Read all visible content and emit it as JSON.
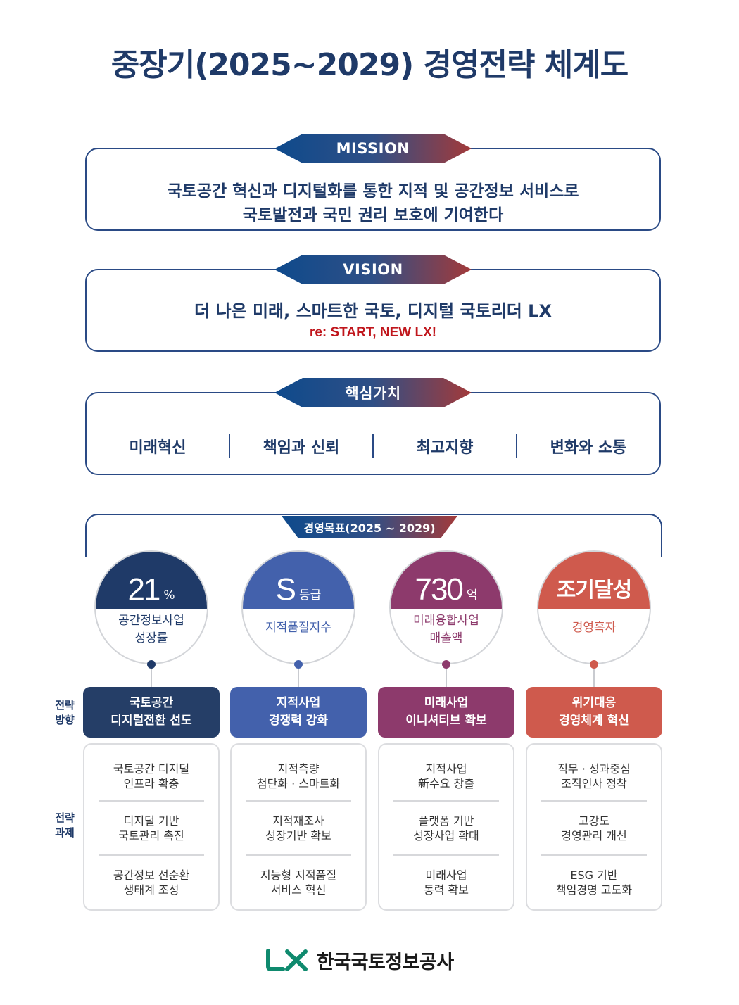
{
  "title": "중장기(2025~2029) 경영전략 체계도",
  "mission": {
    "label": "MISSION",
    "line1": "국토공간 혁신과 디지털화를 통한 지적 및 공간정보 서비스로",
    "line2": "국토발전과 국민 권리 보호에 기여한다"
  },
  "vision": {
    "label": "VISION",
    "line1": "더 나은 미래, 스마트한 국토, 디지털 국토리더 LX",
    "slogan": "re: START, NEW LX!"
  },
  "core_values": {
    "label": "핵심가치",
    "items": [
      "미래혁신",
      "책임과 신뢰",
      "최고지향",
      "변화와 소통"
    ]
  },
  "goals": {
    "label": "경영목표(2025 ~ 2029)",
    "items": [
      {
        "value": "21",
        "unit": "%",
        "desc1": "공간정보사업",
        "desc2": "성장률",
        "color": "#1f3a68"
      },
      {
        "value": "S",
        "unit": "등급",
        "desc1": "지적품질지수",
        "desc2": "",
        "color": "#4361ac"
      },
      {
        "value": "730",
        "unit": "억",
        "desc1": "미래융합사업",
        "desc2": "매출액",
        "color": "#8d3a6c"
      },
      {
        "value": "조기달성",
        "unit": "",
        "desc1": "경영흑자",
        "desc2": "",
        "color": "#cf5a4d"
      }
    ]
  },
  "labels": {
    "direction": [
      "전략",
      "방향"
    ],
    "tasks": [
      "전략",
      "과제"
    ]
  },
  "directions": [
    {
      "line1": "국토공간",
      "line2": "디지털전환 선도",
      "color": "#253e67"
    },
    {
      "line1": "지적사업",
      "line2": "경쟁력 강화",
      "color": "#4361ac"
    },
    {
      "line1": "미래사업",
      "line2": "이니셔티브 확보",
      "color": "#8d3a6c"
    },
    {
      "line1": "위기대응",
      "line2": "경영체계 혁신",
      "color": "#cf5a4d"
    }
  ],
  "tasks": [
    [
      [
        "국토공간 디지털",
        "인프라 확충"
      ],
      [
        "디지털 기반",
        "국토관리 촉진"
      ],
      [
        "공간정보 선순환",
        "생태계 조성"
      ]
    ],
    [
      [
        "지적측량",
        "첨단화 · 스마트화"
      ],
      [
        "지적재조사",
        "성장기반 확보"
      ],
      [
        "지능형 지적품질",
        "서비스 혁신"
      ]
    ],
    [
      [
        "지적사업",
        "新수요 창출"
      ],
      [
        "플랫폼 기반",
        "성장사업 확대"
      ],
      [
        "미래사업",
        "동력 확보"
      ]
    ],
    [
      [
        "직무 · 성과중심",
        "조직인사 정착"
      ],
      [
        "고강도",
        "경영관리 개선"
      ],
      [
        "ESG 기반",
        "책임경영 고도화"
      ]
    ]
  ],
  "footer": {
    "logo_mark": "LX",
    "org_name": "한국국토정보공사"
  }
}
